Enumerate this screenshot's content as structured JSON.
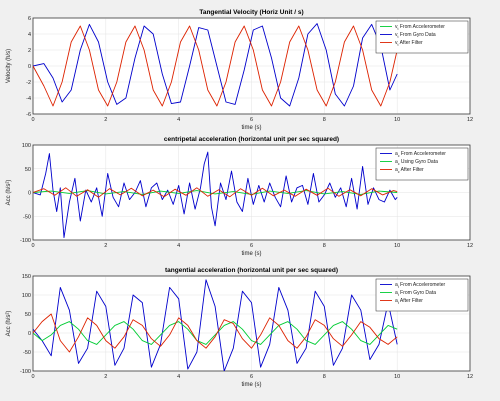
{
  "chart_data": [
    {
      "type": "line",
      "title": "Tangential Velocity (Horiz Unit / s)",
      "xlabel": "time (s)",
      "ylabel": "Velocity (h/s)",
      "xlim": [
        0,
        12
      ],
      "ylim": [
        -6,
        6
      ],
      "xticks": [
        "0",
        "2",
        "4",
        "6",
        "8",
        "10",
        "12"
      ],
      "yticks": [
        "-6",
        "-4",
        "-2",
        "0",
        "2",
        "4",
        "6"
      ],
      "grid": true,
      "legend_position": "top-right",
      "series": [
        {
          "name": "v_t From Accelerometer",
          "sub": "t",
          "label_text": " From Accelerometer",
          "color": "#00cc33",
          "x": [],
          "y": []
        },
        {
          "name": "v_t From Gyro Data",
          "sub": "t",
          "label_text": " From Gyro Data",
          "color": "#0000cc",
          "x": [
            0,
            0.3,
            0.55,
            0.8,
            1.05,
            1.3,
            1.55,
            1.8,
            2.05,
            2.3,
            2.55,
            2.8,
            3.05,
            3.3,
            3.55,
            3.8,
            4.05,
            4.3,
            4.55,
            4.8,
            5.05,
            5.3,
            5.55,
            5.8,
            6.05,
            6.3,
            6.55,
            6.8,
            7.05,
            7.3,
            7.55,
            7.8,
            8.05,
            8.3,
            8.55,
            8.8,
            9.05,
            9.3,
            9.55,
            9.8,
            10.0
          ],
          "y": [
            0,
            0.3,
            -1.5,
            -4.5,
            -3,
            2,
            5.2,
            3,
            -2,
            -4.8,
            -4,
            1,
            5,
            4,
            -1,
            -4.7,
            -4.5,
            0,
            4.8,
            4.5,
            0,
            -4.5,
            -4.8,
            -0.5,
            4.5,
            5,
            1,
            -4,
            -5,
            -1.5,
            4,
            5.3,
            2,
            -3.5,
            -5,
            -2.5,
            3.5,
            5.2,
            2.5,
            -3,
            -1
          ]
        },
        {
          "name": "v_t After Filter",
          "sub": "t",
          "label_text": " After Filter",
          "color": "#dd2200",
          "x": [
            0,
            0.3,
            0.55,
            0.8,
            1.05,
            1.3,
            1.55,
            1.8,
            2.05,
            2.3,
            2.55,
            2.8,
            3.05,
            3.3,
            3.55,
            3.8,
            4.05,
            4.3,
            4.55,
            4.8,
            5.05,
            5.3,
            5.55,
            5.8,
            6.05,
            6.3,
            6.55,
            6.8,
            7.05,
            7.3,
            7.55,
            7.8,
            8.05,
            8.3,
            8.55,
            8.8,
            9.05,
            9.3,
            9.55,
            9.8,
            10.0
          ],
          "y": [
            0,
            -2.5,
            -5,
            -2,
            3,
            5,
            2,
            -3,
            -5,
            -2,
            3,
            5,
            2,
            -3,
            -5,
            -2,
            3,
            5,
            2,
            -3,
            -5,
            -2,
            3,
            5,
            2,
            -3,
            -5,
            -2,
            3,
            5,
            2,
            -3,
            -5,
            -2,
            3,
            5,
            2,
            -3,
            -5,
            -2,
            2
          ]
        }
      ]
    },
    {
      "type": "line",
      "title": "centripetal acceleration (horizontal unit per sec squared)",
      "xlabel": "time (s)",
      "ylabel": "Acc (h/s²)",
      "xlim": [
        0,
        12
      ],
      "ylim": [
        -100,
        100
      ],
      "xticks": [
        "0",
        "2",
        "4",
        "6",
        "8",
        "10",
        "12"
      ],
      "yticks": [
        "-100",
        "-50",
        "0",
        "50",
        "100"
      ],
      "grid": true,
      "legend_position": "top-right",
      "series": [
        {
          "name": "a_c From Accelerometer",
          "sub": "c",
          "label_text": " From Accelerometer",
          "color": "#0000cc",
          "x": [
            0,
            0.2,
            0.35,
            0.45,
            0.55,
            0.65,
            0.75,
            0.85,
            1.0,
            1.15,
            1.3,
            1.45,
            1.6,
            1.75,
            1.9,
            2.05,
            2.2,
            2.35,
            2.5,
            2.65,
            2.8,
            2.95,
            3.1,
            3.25,
            3.4,
            3.55,
            3.7,
            3.85,
            4.0,
            4.15,
            4.3,
            4.45,
            4.6,
            4.7,
            4.8,
            4.9,
            5.0,
            5.15,
            5.3,
            5.45,
            5.6,
            5.75,
            5.9,
            6.05,
            6.2,
            6.35,
            6.5,
            6.65,
            6.8,
            6.95,
            7.1,
            7.25,
            7.4,
            7.55,
            7.7,
            7.85,
            8.0,
            8.15,
            8.3,
            8.45,
            8.6,
            8.75,
            8.9,
            9.05,
            9.2,
            9.35,
            9.5,
            9.65,
            9.8,
            9.95,
            10.0
          ],
          "y": [
            0,
            -5,
            40,
            82,
            5,
            -40,
            10,
            -95,
            -20,
            30,
            -60,
            5,
            -20,
            10,
            -50,
            40,
            -10,
            -30,
            20,
            -15,
            0,
            25,
            -30,
            10,
            20,
            -15,
            5,
            -25,
            15,
            -45,
            20,
            -35,
            10,
            60,
            85,
            -30,
            -70,
            20,
            -15,
            45,
            -20,
            -40,
            30,
            -25,
            15,
            -20,
            20,
            -10,
            -30,
            35,
            -20,
            10,
            15,
            -25,
            40,
            -20,
            -5,
            20,
            -10,
            10,
            -30,
            30,
            -35,
            55,
            -25,
            10,
            -15,
            -20,
            5,
            -15,
            -10
          ]
        },
        {
          "name": "a_c Using Gyro Data",
          "sub": "c",
          "label_text": " Using Gyro Data",
          "color": "#00cc33",
          "x": [
            0,
            0.5,
            1,
            1.5,
            2,
            2.5,
            3,
            3.5,
            4,
            4.5,
            5,
            5.5,
            6,
            6.5,
            7,
            7.5,
            8,
            8.5,
            9,
            9.5,
            10
          ],
          "y": [
            0,
            3,
            -2,
            4,
            -3,
            2,
            -4,
            3,
            -2,
            4,
            -3,
            2,
            -4,
            3,
            -2,
            4,
            -3,
            2,
            -4,
            3,
            0
          ]
        },
        {
          "name": "a_c After Filter",
          "sub": "c",
          "label_text": " After Filter",
          "color": "#dd2200",
          "x": [
            0,
            0.3,
            0.6,
            0.9,
            1.2,
            1.5,
            1.8,
            2.1,
            2.4,
            2.7,
            3.0,
            3.3,
            3.6,
            3.9,
            4.2,
            4.5,
            4.8,
            5.1,
            5.4,
            5.7,
            6.0,
            6.3,
            6.6,
            6.9,
            7.2,
            7.5,
            7.8,
            8.1,
            8.4,
            8.7,
            9.0,
            9.3,
            9.6,
            9.9,
            10.0
          ],
          "y": [
            0,
            8,
            -6,
            10,
            -8,
            6,
            -10,
            8,
            -5,
            9,
            -7,
            5,
            -9,
            7,
            -6,
            10,
            -8,
            6,
            -9,
            8,
            -6,
            9,
            -7,
            5,
            -8,
            7,
            -6,
            9,
            -8,
            6,
            -7,
            8,
            -5,
            4,
            2
          ]
        }
      ]
    },
    {
      "type": "line",
      "title": "tangential acceleration (horizontal unit per sec squared)",
      "xlabel": "time (s)",
      "ylabel": "Acc (h/s²)",
      "xlim": [
        0,
        12
      ],
      "ylim": [
        -100,
        150
      ],
      "xticks": [
        "0",
        "2",
        "4",
        "6",
        "8",
        "10",
        "12"
      ],
      "yticks": [
        "-100",
        "-50",
        "0",
        "50",
        "100",
        "150"
      ],
      "grid": true,
      "legend_position": "top-right",
      "series": [
        {
          "name": "a_t From Accelerometer",
          "sub": "t",
          "label_text": " From Accelerometer",
          "color": "#0000cc",
          "x": [
            0,
            0.25,
            0.5,
            0.75,
            1.0,
            1.25,
            1.5,
            1.75,
            2.0,
            2.25,
            2.5,
            2.75,
            3.0,
            3.25,
            3.5,
            3.75,
            4.0,
            4.25,
            4.5,
            4.75,
            5.0,
            5.25,
            5.5,
            5.75,
            6.0,
            6.25,
            6.5,
            6.75,
            7.0,
            7.25,
            7.5,
            7.75,
            8.0,
            8.25,
            8.5,
            8.75,
            9.0,
            9.25,
            9.5,
            9.75,
            10.0
          ],
          "y": [
            10,
            -20,
            -60,
            120,
            60,
            -80,
            -40,
            110,
            70,
            -85,
            -40,
            100,
            80,
            -90,
            -30,
            120,
            90,
            -95,
            -50,
            140,
            70,
            -100,
            -40,
            110,
            80,
            -90,
            -30,
            120,
            60,
            -80,
            -40,
            110,
            70,
            -85,
            -40,
            100,
            60,
            -70,
            -30,
            80,
            -30
          ]
        },
        {
          "name": "a_t From Gyro Data",
          "sub": "t",
          "label_text": " From Gyro Data",
          "color": "#00cc33",
          "x": [
            0,
            0.25,
            0.5,
            0.75,
            1.0,
            1.25,
            1.5,
            1.75,
            2.0,
            2.25,
            2.5,
            2.75,
            3.0,
            3.25,
            3.5,
            3.75,
            4.0,
            4.25,
            4.5,
            4.75,
            5.0,
            5.25,
            5.5,
            5.75,
            6.0,
            6.25,
            6.5,
            6.75,
            7.0,
            7.25,
            7.5,
            7.75,
            8.0,
            8.25,
            8.5,
            8.75,
            9.0,
            9.25,
            9.5,
            9.75,
            10.0
          ],
          "y": [
            0,
            -20,
            -5,
            20,
            30,
            10,
            -20,
            -30,
            -5,
            20,
            30,
            10,
            -20,
            -30,
            -5,
            20,
            30,
            10,
            -20,
            -30,
            -5,
            20,
            30,
            10,
            -20,
            -30,
            -5,
            20,
            30,
            10,
            -20,
            -30,
            -5,
            20,
            30,
            10,
            -20,
            -30,
            -5,
            20,
            10
          ]
        },
        {
          "name": "a_t After Filter",
          "sub": "t",
          "label_text": " After Filter",
          "color": "#dd2200",
          "x": [
            0,
            0.25,
            0.5,
            0.75,
            1.0,
            1.25,
            1.5,
            1.75,
            2.0,
            2.25,
            2.5,
            2.75,
            3.0,
            3.25,
            3.5,
            3.75,
            4.0,
            4.25,
            4.5,
            4.75,
            5.0,
            5.25,
            5.5,
            5.75,
            6.0,
            6.25,
            6.5,
            6.75,
            7.0,
            7.25,
            7.5,
            7.75,
            8.0,
            8.25,
            8.5,
            8.75,
            9.0,
            9.25,
            9.5,
            9.75,
            10.0
          ],
          "y": [
            0,
            30,
            50,
            -20,
            -50,
            -10,
            40,
            20,
            -20,
            -40,
            -10,
            35,
            20,
            -15,
            -35,
            -5,
            40,
            20,
            -20,
            -40,
            -10,
            35,
            25,
            -15,
            -40,
            -5,
            40,
            20,
            -20,
            -40,
            -10,
            35,
            20,
            -15,
            -35,
            -5,
            30,
            15,
            -15,
            -30,
            -10
          ]
        }
      ]
    }
  ]
}
